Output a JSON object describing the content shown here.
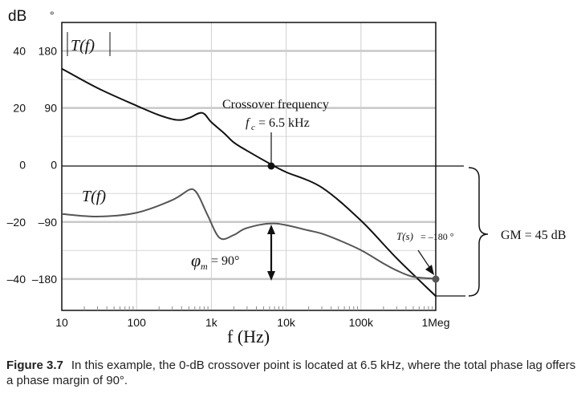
{
  "chart_data": {
    "type": "line",
    "xscale": "log",
    "xlim": [
      10,
      1000000
    ],
    "xlabel": "f (Hz)",
    "xticks": [
      "10",
      "100",
      "1k",
      "10k",
      "100k",
      "1Meg"
    ],
    "xtick_values": [
      10,
      100,
      1000,
      10000,
      100000,
      1000000
    ],
    "y_left_unit": "dB",
    "y_right_unit": "°",
    "ylim_db": [
      -51,
      50
    ],
    "ylim_deg": [
      -229,
      225
    ],
    "yticks_db": [
      "40",
      "20",
      "0",
      "–20",
      "–40"
    ],
    "yticks_deg": [
      "180",
      "90",
      "0",
      "–90",
      "–180"
    ],
    "ytick_values_db": [
      40,
      20,
      0,
      -20,
      -40
    ],
    "grid": true,
    "series": [
      {
        "name": "|T(f)|",
        "axis": "dB",
        "color": "#111111",
        "x": [
          10,
          30,
          100,
          200,
          350,
          500,
          750,
          1000,
          1500,
          2000,
          3000,
          6500,
          10000,
          30000,
          100000,
          300000,
          1000000
        ],
        "y": [
          33.8,
          27,
          20.8,
          17.5,
          15.8,
          16.5,
          18.3,
          15,
          11,
          7.9,
          5,
          0,
          -2.5,
          -7.9,
          -19.5,
          -32.7,
          -46
        ]
      },
      {
        "name": "T(f)",
        "axis": "deg",
        "color": "#555555",
        "x": [
          10,
          30,
          100,
          300,
          500,
          600,
          700,
          900,
          1300,
          2000,
          3000,
          7000,
          20000,
          30000,
          50000,
          100000,
          200000,
          300000,
          500000,
          1000000
        ],
        "y": [
          -77,
          -81,
          -75,
          -55,
          -39,
          -40,
          -52,
          -80,
          -115,
          -110,
          -99,
          -92,
          -103,
          -108,
          -118,
          -134,
          -155,
          -166,
          -176,
          -179
        ]
      }
    ],
    "annotations": {
      "crossover_title": "Crossover frequency",
      "crossover_value": "= 6.5 kHz",
      "crossover_symbol": "f",
      "crossover_sub": "c",
      "crossover_freq": 6500,
      "phase_margin_symbol": "φ",
      "phase_margin_sub": "m",
      "phase_margin_value": "= 90°",
      "ts_label": "T(s)",
      "ts_value": "= –180 °",
      "gm_label": "GM = 45 dB",
      "mag_label": "T(f)",
      "phase_label": "T(f)"
    }
  },
  "caption": {
    "figure_label": "Figure 3.7",
    "text": "In this example, the 0-dB crossover point is located at 6.5 kHz, where the total phase lag offers a phase margin of 90°."
  }
}
